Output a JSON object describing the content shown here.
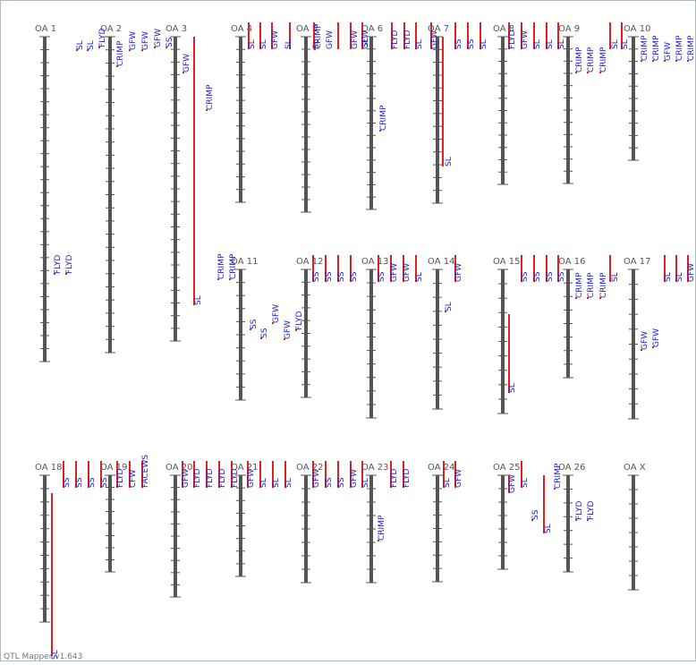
{
  "app": {
    "footer": "QTL Mapper v1.643"
  },
  "colors": {
    "chromosome": "#555555",
    "qtl_bar": "#e02020",
    "trait_text": "#1a1ad6",
    "label_text": "#555555"
  },
  "chart_data": {
    "type": "qtl-linkage-map",
    "chromosomes": [
      {
        "name": "OA 1",
        "ticks": 24,
        "qtls": [
          {
            "trait": "SL"
          },
          {
            "trait": "SL"
          },
          {
            "trait": "FLYD"
          },
          {
            "trait": "FLYD"
          },
          {
            "trait": "FLYD"
          }
        ]
      },
      {
        "name": "OA 2",
        "ticks": 23,
        "qtls": [
          {
            "trait": "CRIMP"
          },
          {
            "trait": "GFW"
          },
          {
            "trait": "GFW"
          },
          {
            "trait": "GFW"
          }
        ]
      },
      {
        "name": "OA 3",
        "ticks": 23,
        "qtls": [
          {
            "trait": "SS"
          },
          {
            "trait": "GFW"
          },
          {
            "trait": "CRIMP"
          },
          {
            "trait": "SL"
          },
          {
            "trait": "CRIMP"
          },
          {
            "trait": "CRIMP"
          }
        ]
      },
      {
        "name": "OA 4",
        "ticks": 12,
        "qtls": [
          {
            "trait": "SL"
          },
          {
            "trait": "SL"
          },
          {
            "trait": "GFW"
          },
          {
            "trait": "SL"
          }
        ]
      },
      {
        "name": "OA 5",
        "ticks": 13,
        "qtls": [
          {
            "trait": "SL"
          },
          {
            "trait": "CRIMP"
          },
          {
            "trait": "GFW"
          },
          {
            "trait": "GFW"
          },
          {
            "trait": "GFW"
          }
        ]
      },
      {
        "name": "OA 6",
        "ticks": 13,
        "qtls": [
          {
            "trait": "SL"
          },
          {
            "trait": "CRIMP"
          },
          {
            "trait": "FLYD"
          },
          {
            "trait": "FLYD"
          },
          {
            "trait": "SL"
          }
        ]
      },
      {
        "name": "OA 7",
        "ticks": 12,
        "qtls": [
          {
            "trait": "GFW"
          },
          {
            "trait": "SL"
          },
          {
            "trait": "SS"
          },
          {
            "trait": "SS"
          },
          {
            "trait": "SL"
          }
        ]
      },
      {
        "name": "OA 8",
        "ticks": 11,
        "qtls": [
          {
            "trait": "FLYD"
          },
          {
            "trait": "GFW"
          },
          {
            "trait": "SL"
          },
          {
            "trait": "SL"
          }
        ]
      },
      {
        "name": "OA 9",
        "ticks": 11,
        "qtls": [
          {
            "trait": "SL"
          },
          {
            "trait": "CRIMP"
          },
          {
            "trait": "CRIMP"
          },
          {
            "trait": "CRIMP"
          },
          {
            "trait": "SL"
          }
        ]
      },
      {
        "name": "OA 10",
        "ticks": 9,
        "qtls": [
          {
            "trait": "SL"
          },
          {
            "trait": "CRIMP"
          },
          {
            "trait": "CRIMP"
          },
          {
            "trait": "GFW"
          },
          {
            "trait": "CRIMP"
          },
          {
            "trait": "CRIMP"
          }
        ]
      },
      {
        "name": "OA 11",
        "ticks": 9,
        "qtls": [
          {
            "trait": "SS"
          },
          {
            "trait": "SS"
          },
          {
            "trait": "GFW"
          },
          {
            "trait": "GFW"
          },
          {
            "trait": "FLYD"
          }
        ]
      },
      {
        "name": "OA 12",
        "ticks": 9,
        "qtls": [
          {
            "trait": "SS"
          },
          {
            "trait": "SS"
          },
          {
            "trait": "SS"
          },
          {
            "trait": "SS"
          }
        ]
      },
      {
        "name": "OA 13",
        "ticks": 10,
        "qtls": [
          {
            "trait": "SS"
          },
          {
            "trait": "GFW"
          },
          {
            "trait": "GFW"
          },
          {
            "trait": "SL"
          }
        ]
      },
      {
        "name": "OA 14",
        "ticks": 9,
        "qtls": [
          {
            "trait": "GFW"
          },
          {
            "trait": "SL"
          }
        ]
      },
      {
        "name": "OA 15",
        "ticks": 9,
        "qtls": [
          {
            "trait": "SL"
          },
          {
            "trait": "SS"
          },
          {
            "trait": "SS"
          },
          {
            "trait": "SS"
          }
        ]
      },
      {
        "name": "OA 16",
        "ticks": 7,
        "qtls": [
          {
            "trait": "SS"
          },
          {
            "trait": "CRIMP"
          },
          {
            "trait": "CRIMP"
          },
          {
            "trait": "CRIMP"
          },
          {
            "trait": "SL"
          }
        ]
      },
      {
        "name": "OA 17",
        "ticks": 9,
        "qtls": [
          {
            "trait": "GFW"
          },
          {
            "trait": "GFW"
          },
          {
            "trait": "SL"
          },
          {
            "trait": "SL"
          },
          {
            "trait": "GFW"
          }
        ]
      },
      {
        "name": "OA 18",
        "ticks": 10,
        "qtls": [
          {
            "trait": "SL"
          },
          {
            "trait": "SS"
          },
          {
            "trait": "SS"
          },
          {
            "trait": "SS"
          },
          {
            "trait": "SS"
          }
        ]
      },
      {
        "name": "OA 19",
        "ticks": 7,
        "qtls": [
          {
            "trait": "FLYD"
          },
          {
            "trait": "CFW"
          },
          {
            "trait": "FACEWS"
          }
        ]
      },
      {
        "name": "OA 20",
        "ticks": 9,
        "qtls": [
          {
            "trait": "GFW"
          },
          {
            "trait": "FLYD"
          },
          {
            "trait": "FLYD"
          },
          {
            "trait": "FLYD"
          },
          {
            "trait": "FLYD"
          }
        ]
      },
      {
        "name": "OA 21",
        "ticks": 7,
        "qtls": [
          {
            "trait": "GFW"
          },
          {
            "trait": "SL"
          },
          {
            "trait": "SL"
          },
          {
            "trait": "SL"
          }
        ]
      },
      {
        "name": "OA 22",
        "ticks": 7,
        "qtls": [
          {
            "trait": "GFW"
          },
          {
            "trait": "SS"
          },
          {
            "trait": "SS"
          },
          {
            "trait": "GFW"
          },
          {
            "trait": "SL"
          }
        ]
      },
      {
        "name": "OA 23",
        "ticks": 7,
        "qtls": [
          {
            "trait": "CRIMP"
          },
          {
            "trait": "FLYD"
          },
          {
            "trait": "FLYD"
          }
        ]
      },
      {
        "name": "OA 24",
        "ticks": 7,
        "qtls": [
          {
            "trait": "SL"
          },
          {
            "trait": "GFW"
          }
        ]
      },
      {
        "name": "OA 25",
        "ticks": 6,
        "qtls": [
          {
            "trait": "GFW"
          },
          {
            "trait": "SL"
          },
          {
            "trait": "SS"
          },
          {
            "trait": "SL"
          }
        ]
      },
      {
        "name": "OA 26",
        "ticks": 6,
        "qtls": [
          {
            "trait": "CRIMP"
          },
          {
            "trait": "FLYD"
          },
          {
            "trait": "FLYD"
          }
        ]
      },
      {
        "name": "OA X",
        "ticks": 7,
        "qtls": []
      }
    ]
  }
}
